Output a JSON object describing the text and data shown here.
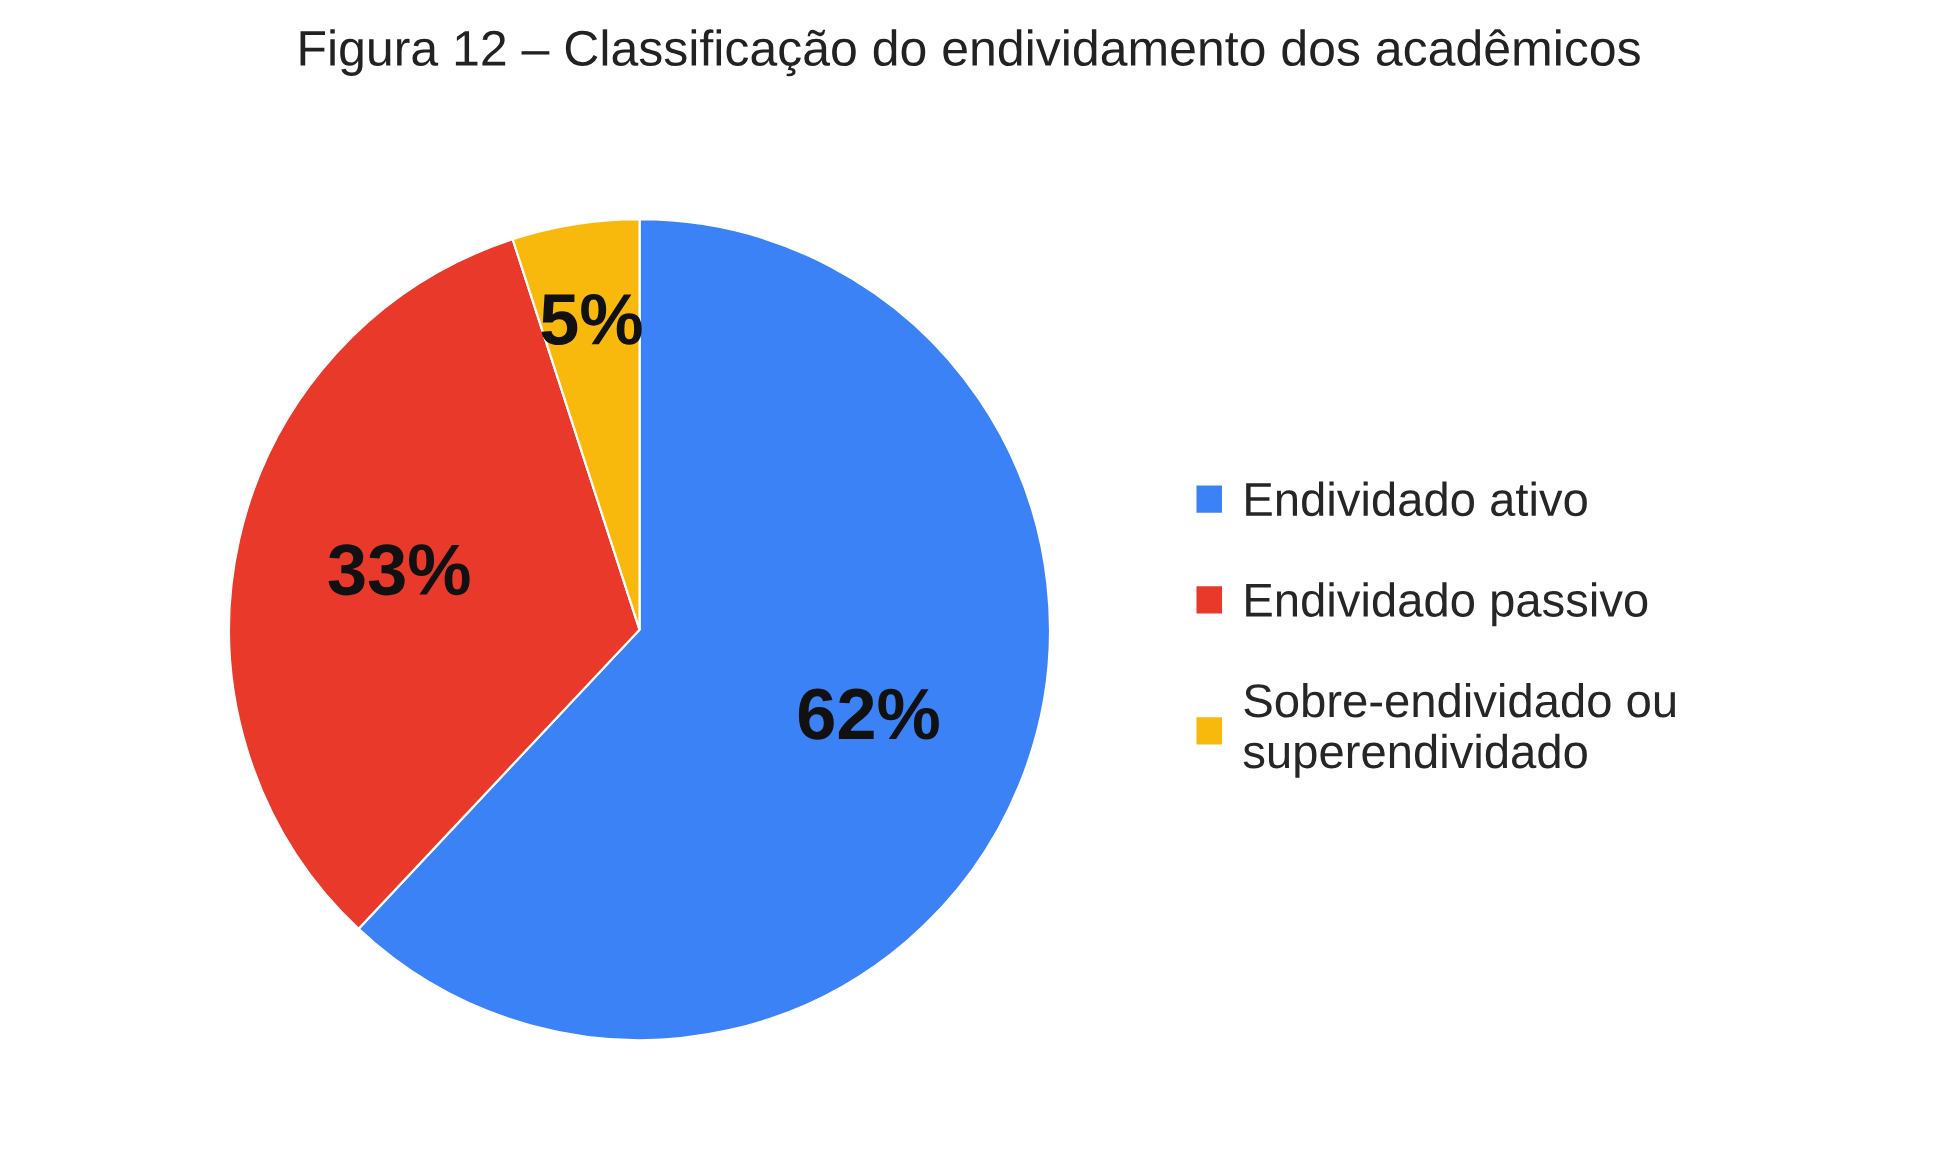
{
  "chart_data": {
    "type": "pie",
    "title": "Figura 12 – Classificação do endividamento dos acadêmicos",
    "categories": [
      "Endividado ativo",
      "Endividado passivo",
      "Sobre-endividado ou superendividado"
    ],
    "values": [
      62,
      33,
      5
    ],
    "value_labels": [
      "62%",
      "33%",
      "5%"
    ],
    "colors": [
      "#3b82f6",
      "#e9392a",
      "#f9b90c"
    ],
    "legend": "right"
  }
}
